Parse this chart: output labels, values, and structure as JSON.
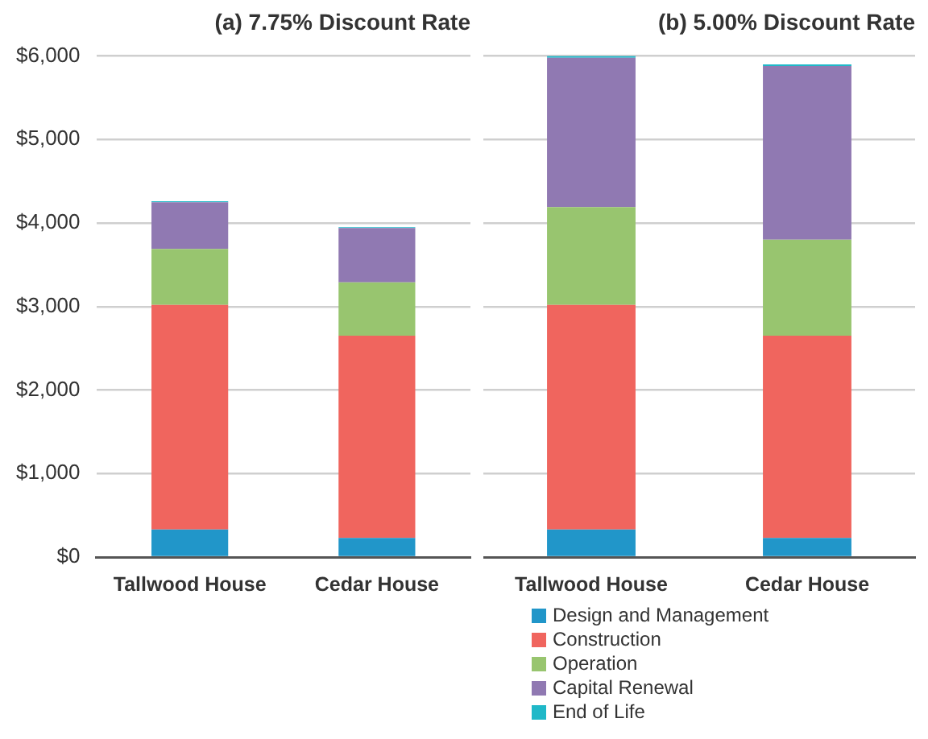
{
  "chart_data": [
    {
      "type": "bar",
      "title": "(a) 7.75% Discount Rate",
      "categories": [
        "Tallwood House",
        "Cedar House"
      ],
      "stacked": true,
      "grid": "y",
      "ylim": [
        0,
        6000
      ],
      "legend": "bottom right",
      "yticks": [
        {
          "value": 0,
          "label": "$0"
        },
        {
          "value": 1000,
          "label": "$1,000"
        },
        {
          "value": 2000,
          "label": "$2,000"
        },
        {
          "value": 3000,
          "label": "$3,000"
        },
        {
          "value": 4000,
          "label": "$4,000"
        },
        {
          "value": 5000,
          "label": "$5,000"
        },
        {
          "value": 6000,
          "label": "$6,000"
        }
      ],
      "series": [
        {
          "name": "Design and Management",
          "color": "#2196c9",
          "values": [
            330,
            230
          ]
        },
        {
          "name": "Construction",
          "color": "#f0655e",
          "values": [
            2690,
            2420
          ]
        },
        {
          "name": "Operation",
          "color": "#98c56f",
          "values": [
            670,
            640
          ]
        },
        {
          "name": "Capital Renewal",
          "color": "#9079b2",
          "values": [
            560,
            650
          ]
        },
        {
          "name": "End of Life",
          "color": "#1fb8c8",
          "values": [
            10,
            10
          ]
        }
      ]
    },
    {
      "type": "bar",
      "title": "(b) 5.00% Discount Rate",
      "categories": [
        "Tallwood House",
        "Cedar House"
      ],
      "stacked": true,
      "grid": "y",
      "ylim": [
        0,
        6000
      ],
      "tick_labels": "x",
      "yticks": [
        0,
        1000,
        2000,
        3000,
        4000,
        5000,
        6000
      ],
      "series": [
        {
          "color": "#2196c9",
          "values": [
            330,
            230
          ]
        },
        {
          "color": "#f0655e",
          "values": [
            2690,
            2420
          ]
        },
        {
          "color": "#98c56f",
          "values": [
            1170,
            1150
          ]
        },
        {
          "color": "#9079b2",
          "values": [
            1790,
            2080
          ]
        },
        {
          "color": "#1fb8c8",
          "values": [
            20,
            20
          ]
        }
      ]
    }
  ]
}
